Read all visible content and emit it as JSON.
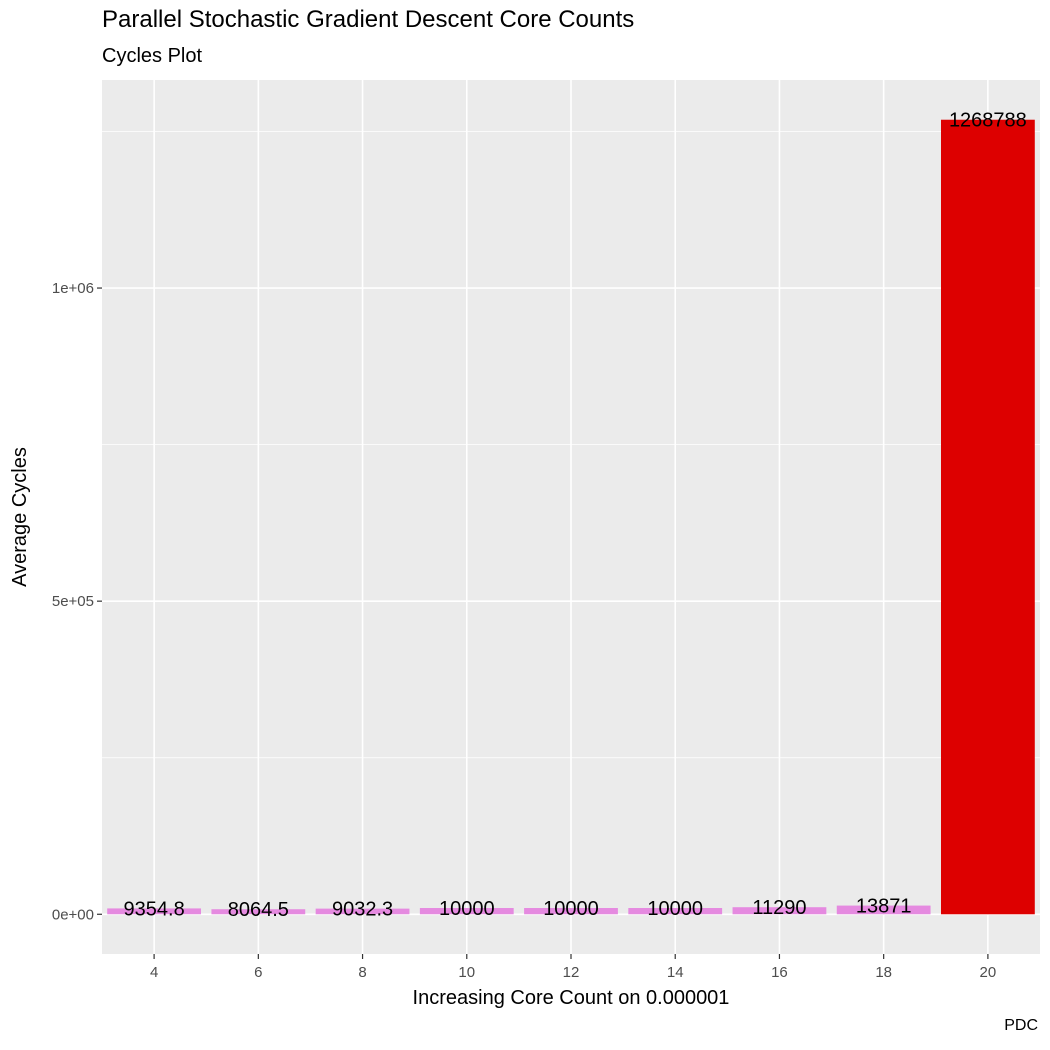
{
  "chart_data": {
    "type": "bar",
    "title": "Parallel Stochastic Gradient Descent Core Counts",
    "subtitle": "Cycles Plot",
    "caption": "PDC",
    "xlabel": "Increasing Core Count on 0.000001",
    "ylabel": "Average Cycles",
    "categories": [
      4,
      6,
      8,
      10,
      12,
      14,
      16,
      18,
      20
    ],
    "values": [
      9354.8,
      8064.5,
      9032.3,
      10000,
      10000,
      10000,
      11290,
      13871,
      1268788
    ],
    "value_labels": [
      "9354.8",
      "8064.5",
      "9032.3",
      "10000",
      "10000",
      "10000",
      "11290",
      "13871",
      "1268788"
    ],
    "bar_colors": [
      "#e58ae0",
      "#e58ae0",
      "#e58ae0",
      "#e58ae0",
      "#e58ae0",
      "#e58ae0",
      "#e58ae0",
      "#e58ae0",
      "#dd0000"
    ],
    "x_ticks": [
      "4",
      "6",
      "8",
      "10",
      "12",
      "14",
      "16",
      "18",
      "20"
    ],
    "y_ticks": [
      {
        "value": 0,
        "label": "0e+00"
      },
      {
        "value": 500000,
        "label": "5e+05"
      },
      {
        "value": 1000000,
        "label": "1e+06"
      }
    ],
    "xlim": [
      3,
      21
    ],
    "ylim": [
      -63439,
      1332227
    ],
    "grid": true,
    "panel_background": "#ebebeb",
    "grid_color": "#ffffff"
  }
}
